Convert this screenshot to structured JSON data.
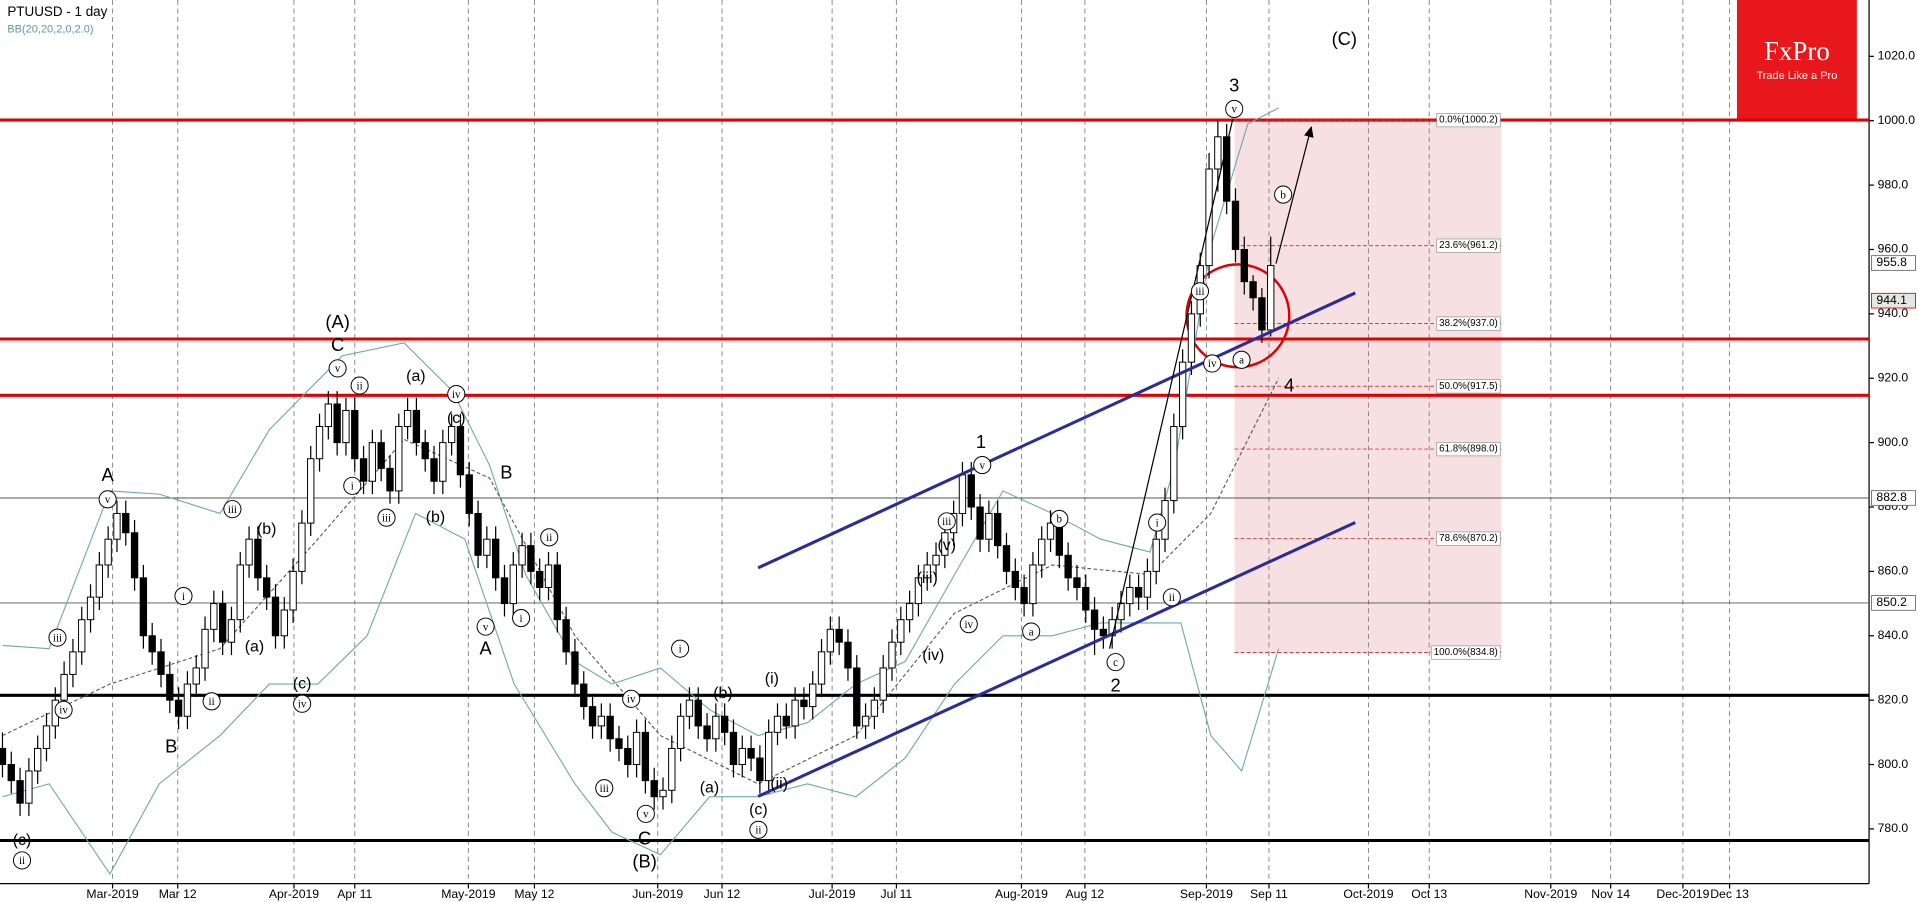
{
  "chart_data": {
    "type": "candlestick",
    "title": "PTUUSD - 1 day",
    "indicator": "BB(20,20,2,0,2.0)",
    "logo": {
      "name": "FxPro",
      "tagline": "Trade Like a Pro"
    },
    "ylim": [
      763,
      1037.5
    ],
    "yticks": [
      {
        "value": 780,
        "label": "780.0"
      },
      {
        "value": 800,
        "label": "800.0"
      },
      {
        "value": 820,
        "label": "820.0"
      },
      {
        "value": 840,
        "label": "840.0"
      },
      {
        "value": 860,
        "label": "860.0"
      },
      {
        "value": 880,
        "label": "880.0"
      },
      {
        "value": 900,
        "label": "900.0"
      },
      {
        "value": 920,
        "label": "920.0"
      },
      {
        "value": 940,
        "label": "940.0"
      },
      {
        "value": 960,
        "label": "960.0"
      },
      {
        "value": 980,
        "label": "980.0"
      },
      {
        "value": 1000,
        "label": "1000.0"
      },
      {
        "value": 1020,
        "label": "1020.0"
      }
    ],
    "xlim": [
      -0.28,
      211.94
    ],
    "xticks": [
      {
        "value": 12.5,
        "label": "Mar-2019"
      },
      {
        "value": 19.9,
        "label": "Mar 12"
      },
      {
        "value": 33.1,
        "label": "Apr-2019"
      },
      {
        "value": 40,
        "label": "Apr 11"
      },
      {
        "value": 52.9,
        "label": "May-2019"
      },
      {
        "value": 60.4,
        "label": "May 12"
      },
      {
        "value": 74.4,
        "label": "Jun-2019"
      },
      {
        "value": 81.7,
        "label": "Jun 12"
      },
      {
        "value": 94.2,
        "label": "Jul-2019"
      },
      {
        "value": 101.5,
        "label": "Jul 11"
      },
      {
        "value": 115.7,
        "label": "Aug-2019"
      },
      {
        "value": 122.9,
        "label": "Aug 12"
      },
      {
        "value": 136.7,
        "label": "Sep-2019"
      },
      {
        "value": 143.8,
        "label": "Sep 11"
      },
      {
        "value": 155.1,
        "label": "Oct-2019"
      },
      {
        "value": 162,
        "label": "Oct 13"
      },
      {
        "value": 175.8,
        "label": "Nov-2019"
      },
      {
        "value": 182.6,
        "label": "Nov 14"
      },
      {
        "value": 190.8,
        "label": "Dec-2019"
      },
      {
        "value": 196.1,
        "label": "Dec 13"
      }
    ],
    "grid": true,
    "up_color": "#ffffff",
    "down_color": "#000000",
    "candles": [
      [
        805,
        810,
        796,
        800
      ],
      [
        800,
        804,
        791,
        795
      ],
      [
        795,
        799,
        784,
        788
      ],
      [
        788,
        802,
        784,
        798
      ],
      [
        798,
        809,
        794,
        805
      ],
      [
        805,
        816,
        801,
        812
      ],
      [
        812,
        824,
        808,
        820
      ],
      [
        820,
        832,
        816,
        828
      ],
      [
        828,
        839,
        824,
        835
      ],
      [
        835,
        849,
        831,
        845
      ],
      [
        845,
        856,
        841,
        852
      ],
      [
        852,
        866,
        848,
        862
      ],
      [
        862,
        874,
        858,
        870
      ],
      [
        870,
        882,
        866,
        878
      ],
      [
        878,
        882,
        868,
        872
      ],
      [
        872,
        876,
        854,
        858
      ],
      [
        858,
        862,
        836,
        840
      ],
      [
        840,
        844,
        831,
        835
      ],
      [
        835,
        839,
        824,
        828
      ],
      [
        828,
        832,
        816,
        820
      ],
      [
        820,
        824,
        811,
        815
      ],
      [
        815,
        829,
        811,
        825
      ],
      [
        825,
        834,
        821,
        830
      ],
      [
        830,
        846,
        826,
        842
      ],
      [
        842,
        854,
        838,
        850
      ],
      [
        850,
        854,
        834,
        838
      ],
      [
        838,
        849,
        834,
        845
      ],
      [
        845,
        866,
        841,
        862
      ],
      [
        862,
        874,
        858,
        870
      ],
      [
        870,
        874,
        854,
        858
      ],
      [
        858,
        862,
        848,
        852
      ],
      [
        852,
        856,
        836,
        840
      ],
      [
        840,
        852,
        836,
        848
      ],
      [
        848,
        864,
        844,
        860
      ],
      [
        860,
        879,
        856,
        875
      ],
      [
        875,
        899,
        871,
        895
      ],
      [
        895,
        909,
        891,
        905
      ],
      [
        905,
        916,
        901,
        912
      ],
      [
        912,
        916,
        896,
        900
      ],
      [
        900,
        914,
        896,
        910
      ],
      [
        910,
        914,
        891,
        895
      ],
      [
        895,
        899,
        884,
        888
      ],
      [
        888,
        904,
        884,
        900
      ],
      [
        900,
        904,
        888,
        892
      ],
      [
        892,
        896,
        881,
        885
      ],
      [
        885,
        909,
        881,
        905
      ],
      [
        905,
        914,
        901,
        910
      ],
      [
        910,
        914,
        896,
        900
      ],
      [
        900,
        904,
        891,
        895
      ],
      [
        895,
        899,
        884,
        888
      ],
      [
        888,
        904,
        884,
        900
      ],
      [
        900,
        909,
        896,
        905
      ],
      [
        905,
        909,
        886,
        890
      ],
      [
        890,
        894,
        874,
        878
      ],
      [
        878,
        882,
        861,
        865
      ],
      [
        865,
        874,
        861,
        870
      ],
      [
        870,
        874,
        854,
        858
      ],
      [
        858,
        862,
        846,
        850
      ],
      [
        850,
        866,
        846,
        862
      ],
      [
        862,
        872,
        858,
        868
      ],
      [
        868,
        872,
        856,
        860
      ],
      [
        860,
        864,
        851,
        855
      ],
      [
        855,
        866,
        851,
        862
      ],
      [
        862,
        866,
        841,
        845
      ],
      [
        845,
        849,
        831,
        835
      ],
      [
        835,
        839,
        821,
        825
      ],
      [
        825,
        829,
        814,
        818
      ],
      [
        818,
        822,
        808,
        812
      ],
      [
        812,
        819,
        808,
        815
      ],
      [
        815,
        819,
        804,
        808
      ],
      [
        808,
        812,
        801,
        805
      ],
      [
        805,
        809,
        796,
        800
      ],
      [
        800,
        814,
        796,
        810
      ],
      [
        810,
        814,
        791,
        795
      ],
      [
        795,
        799,
        786,
        790
      ],
      [
        790,
        796,
        786,
        792
      ],
      [
        792,
        809,
        788,
        805
      ],
      [
        805,
        819,
        801,
        815
      ],
      [
        815,
        824,
        811,
        820
      ],
      [
        820,
        824,
        808,
        812
      ],
      [
        812,
        816,
        804,
        808
      ],
      [
        808,
        819,
        804,
        815
      ],
      [
        815,
        819,
        806,
        810
      ],
      [
        810,
        814,
        796,
        800
      ],
      [
        800,
        809,
        796,
        805
      ],
      [
        805,
        809,
        798,
        802
      ],
      [
        802,
        806,
        791,
        795
      ],
      [
        795,
        814,
        791,
        810
      ],
      [
        810,
        819,
        806,
        815
      ],
      [
        815,
        819,
        808,
        812
      ],
      [
        812,
        824,
        808,
        820
      ],
      [
        820,
        824,
        814,
        818
      ],
      [
        818,
        829,
        814,
        825
      ],
      [
        825,
        839,
        821,
        835
      ],
      [
        835,
        846,
        831,
        842
      ],
      [
        842,
        846,
        834,
        838
      ],
      [
        838,
        842,
        826,
        830
      ],
      [
        830,
        834,
        808,
        812
      ],
      [
        812,
        819,
        808,
        815
      ],
      [
        815,
        824,
        811,
        820
      ],
      [
        820,
        834,
        816,
        830
      ],
      [
        830,
        842,
        826,
        838
      ],
      [
        838,
        849,
        834,
        845
      ],
      [
        845,
        854,
        841,
        850
      ],
      [
        850,
        862,
        846,
        858
      ],
      [
        858,
        866,
        854,
        862
      ],
      [
        862,
        869,
        858,
        865
      ],
      [
        865,
        876,
        861,
        872
      ],
      [
        872,
        882,
        868,
        878
      ],
      [
        878,
        894,
        874,
        890
      ],
      [
        890,
        894,
        876,
        880
      ],
      [
        880,
        884,
        866,
        870
      ],
      [
        870,
        882,
        866,
        878
      ],
      [
        878,
        882,
        864,
        868
      ],
      [
        868,
        872,
        856,
        860
      ],
      [
        860,
        864,
        851,
        855
      ],
      [
        855,
        859,
        846,
        850
      ],
      [
        850,
        866,
        846,
        862
      ],
      [
        862,
        874,
        858,
        870
      ],
      [
        870,
        879,
        866,
        875
      ],
      [
        875,
        879,
        861,
        865
      ],
      [
        865,
        869,
        854,
        858
      ],
      [
        858,
        862,
        851,
        855
      ],
      [
        855,
        859,
        844,
        848
      ],
      [
        848,
        852,
        834,
        842
      ],
      [
        842,
        846,
        836,
        840
      ],
      [
        840,
        849,
        836,
        845
      ],
      [
        845,
        854,
        841,
        850
      ],
      [
        850,
        859,
        846,
        855
      ],
      [
        855,
        859,
        848,
        852
      ],
      [
        852,
        864,
        848,
        860
      ],
      [
        860,
        874,
        856,
        870
      ],
      [
        870,
        886,
        866,
        882
      ],
      [
        882,
        909,
        878,
        905
      ],
      [
        905,
        929,
        901,
        925
      ],
      [
        925,
        944,
        921,
        940
      ],
      [
        940,
        959,
        936,
        955
      ],
      [
        955,
        990,
        951,
        985
      ],
      [
        985,
        1000,
        978,
        995
      ],
      [
        995,
        999,
        971,
        975
      ],
      [
        975,
        979,
        956,
        960
      ],
      [
        960,
        964,
        946,
        950
      ],
      [
        950,
        952,
        941,
        945
      ],
      [
        945,
        948,
        931,
        935
      ],
      [
        935,
        964,
        933,
        955
      ]
    ],
    "bands": [
      {
        "color": "#6aa9b0",
        "x": [
          0,
          5.3,
          12.2,
          17.8,
          24.7,
          30.3,
          38.6,
          45.6,
          51.1,
          55.3,
          59.4,
          65,
          69.2,
          74.7,
          80.3,
          85.8,
          91.4,
          96.9,
          102.5,
          108.1,
          113.6,
          119.2,
          124.7,
          130.3,
          133.1,
          137.2,
          141.4,
          144.9
        ],
        "values": [
          837,
          836,
          885,
          884,
          878,
          904,
          927,
          931,
          916,
          893,
          859,
          832,
          825,
          830,
          817,
          809,
          813,
          825,
          832,
          859,
          885,
          878,
          870,
          866,
          893,
          961,
          999,
          1004
        ]
      },
      {
        "color": "#555555",
        "dashed": true,
        "x": [
          0,
          12.2,
          24.7,
          35.8,
          45.6,
          55.3,
          65,
          74.7,
          85.8,
          96.9,
          108.1,
          119.2,
          130.3,
          137.2,
          144.9
        ],
        "values": [
          809,
          825,
          836,
          870,
          901,
          889,
          840,
          809,
          794,
          809,
          847,
          862,
          859,
          878,
          920
        ]
      },
      {
        "color": "#6aa9b0",
        "x": [
          0,
          5.3,
          12.2,
          17.8,
          24.7,
          30.3,
          35.8,
          41.4,
          46.9,
          52.5,
          58.1,
          65,
          69.2,
          74.7,
          80.3,
          85.8,
          91.4,
          96.9,
          102.5,
          108.1,
          113.6,
          119.2,
          124.7,
          130.3,
          133.8,
          137.2,
          140.7,
          144.9
        ],
        "values": [
          790,
          794,
          766,
          794,
          809,
          825,
          825,
          840,
          878,
          870,
          825,
          794,
          779,
          772,
          790,
          790,
          794,
          790,
          802,
          825,
          840,
          840,
          844,
          844,
          844,
          809,
          798,
          836
        ]
      }
    ],
    "levels": [
      {
        "value": 1000.2,
        "color": "#e00000"
      },
      {
        "value": 932.2,
        "color": "#e00000"
      },
      {
        "value": 914.7,
        "color": "#e00000"
      },
      {
        "value": 821.5,
        "color": "#000000"
      },
      {
        "value": 776.4,
        "color": "#000000"
      },
      {
        "value": 882.8,
        "color": "#555555"
      },
      {
        "value": 850.2,
        "color": "#555555"
      }
    ],
    "price_labels": [
      955.8,
      944.1,
      882.8,
      850.2
    ],
    "fib_start": 139.9,
    "fib_end": 170.2,
    "fib_levels": [
      {
        "value": 1000.2,
        "label": "0.0%(1000.2)"
      },
      {
        "value": 961.2,
        "label": "23.6%(961.2)"
      },
      {
        "value": 937.0,
        "label": "38.2%(937.0)"
      },
      {
        "value": 917.5,
        "label": "50.0%(917.5)"
      },
      {
        "value": 898.0,
        "label": "61.8%(898.0)"
      },
      {
        "value": 870.2,
        "label": "78.6%(870.2)"
      },
      {
        "value": 834.8,
        "label": "100.0%(834.8)"
      }
    ],
    "channel": [
      {
        "color": "#2b2b9a",
        "x": [
          85.8,
          153.6
        ],
        "y": [
          861.1,
          946.5
        ]
      },
      {
        "color": "#2b2b9a",
        "x": [
          85.8,
          153.6
        ],
        "y": [
          790.1,
          875.2
        ]
      }
    ],
    "arrows": [
      {
        "color": "#000000",
        "x": [
          125.7,
          139.7
        ],
        "y": [
          836,
          1000.6
        ]
      },
      {
        "color": "#000000",
        "x": [
          144.6,
          148.6
        ],
        "y": [
          955.6,
          998
        ]
      }
    ],
    "annotations": [
      "(C)",
      "3",
      "v",
      "b",
      "iii",
      "iv",
      "a",
      "4",
      "i",
      "ii",
      "c",
      "2",
      "1",
      "v",
      "iii",
      "(v)",
      "(iii)",
      "iv",
      "(iv)",
      "a",
      "b",
      "(i)",
      "(b)",
      "i",
      "(a)",
      "(c)",
      "ii",
      "(ii)",
      "iv",
      "iii",
      "v",
      "C",
      "(B)",
      "A",
      "v",
      "iii",
      "(b)",
      "i",
      "(a)",
      "iii",
      "iv",
      "ii",
      "B",
      "(c)",
      "iv",
      "(A)",
      "C",
      "v",
      "ii",
      "i",
      "(a)",
      "(c)",
      "iv",
      "iii",
      "(b)",
      "B",
      "ii",
      "v",
      "A",
      "i",
      "(c)",
      "ii"
    ]
  }
}
